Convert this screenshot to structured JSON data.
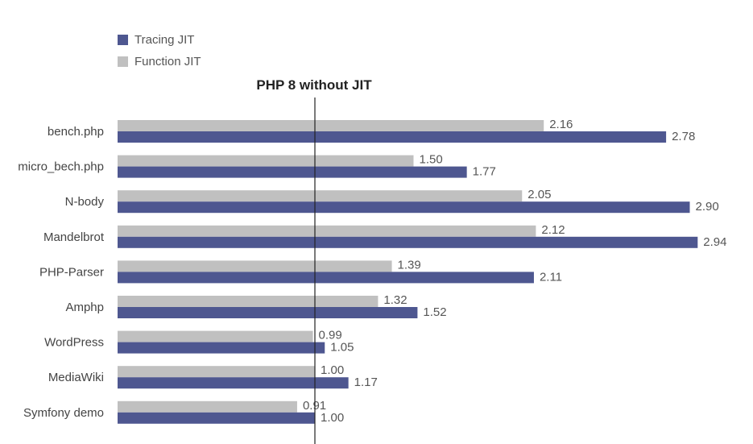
{
  "chart_data": {
    "type": "bar",
    "orientation": "horizontal",
    "categories": [
      "bench.php",
      "micro_bech.php",
      "N-body",
      "Mandelbrot",
      "PHP-Parser",
      "Amphp",
      "WordPress",
      "MediaWiki",
      "Symfony demo"
    ],
    "series": [
      {
        "name": "Function JIT",
        "color": "#c0c0c0",
        "values": [
          2.16,
          1.5,
          2.05,
          2.12,
          1.39,
          1.32,
          0.99,
          1.0,
          0.91
        ],
        "labels": [
          "2.16",
          "1.50",
          "2.05",
          "2.12",
          "1.39",
          "1.32",
          "0.99",
          "1.00",
          "0.91"
        ]
      },
      {
        "name": "Tracing JIT",
        "color": "#4e5790",
        "values": [
          2.78,
          1.77,
          2.9,
          2.94,
          2.11,
          1.52,
          1.05,
          1.17,
          1.0
        ],
        "labels": [
          "2.78",
          "1.77",
          "2.90",
          "2.94",
          "2.11",
          "1.52",
          "1.05",
          "1.17",
          "1.00"
        ]
      }
    ],
    "reference_line": {
      "value": 1.0,
      "label": "PHP 8 without JIT"
    },
    "legend": [
      {
        "name": "Tracing JIT",
        "color": "#4e5790"
      },
      {
        "name": "Function JIT",
        "color": "#c0c0c0"
      }
    ],
    "xlim": [
      0,
      3
    ],
    "grid": false,
    "legend_position": "top-left"
  }
}
